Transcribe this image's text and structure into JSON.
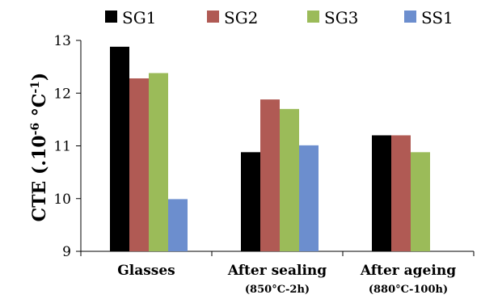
{
  "chart_data": {
    "type": "bar",
    "ylabel": "CTE (.10",
    "ylabel_exp1": "-6",
    "ylabel_mid": " °C",
    "ylabel_exp2": "-1",
    "ylabel_end": ")",
    "ylim": [
      9,
      13
    ],
    "yticks": [
      "9",
      "10",
      "11",
      "12",
      "13"
    ],
    "grid": false,
    "legend_position": "top",
    "categories": [
      {
        "label": "Glasses",
        "sublabel": ""
      },
      {
        "label": "After sealing",
        "sublabel": "(850°C-2h)"
      },
      {
        "label": "After ageing",
        "sublabel": "(880°C-100h)"
      }
    ],
    "series": [
      {
        "name": "SG1",
        "color": "#000000",
        "values": [
          12.88,
          10.88,
          11.2
        ]
      },
      {
        "name": "SG2",
        "color": "#B05A54",
        "values": [
          12.28,
          11.88,
          11.2
        ]
      },
      {
        "name": "SG3",
        "color": "#9BBB59",
        "values": [
          12.38,
          11.7,
          10.88
        ]
      },
      {
        "name": "SS1",
        "color": "#6C8ECE",
        "values": [
          9.99,
          11.01,
          null
        ]
      }
    ]
  }
}
